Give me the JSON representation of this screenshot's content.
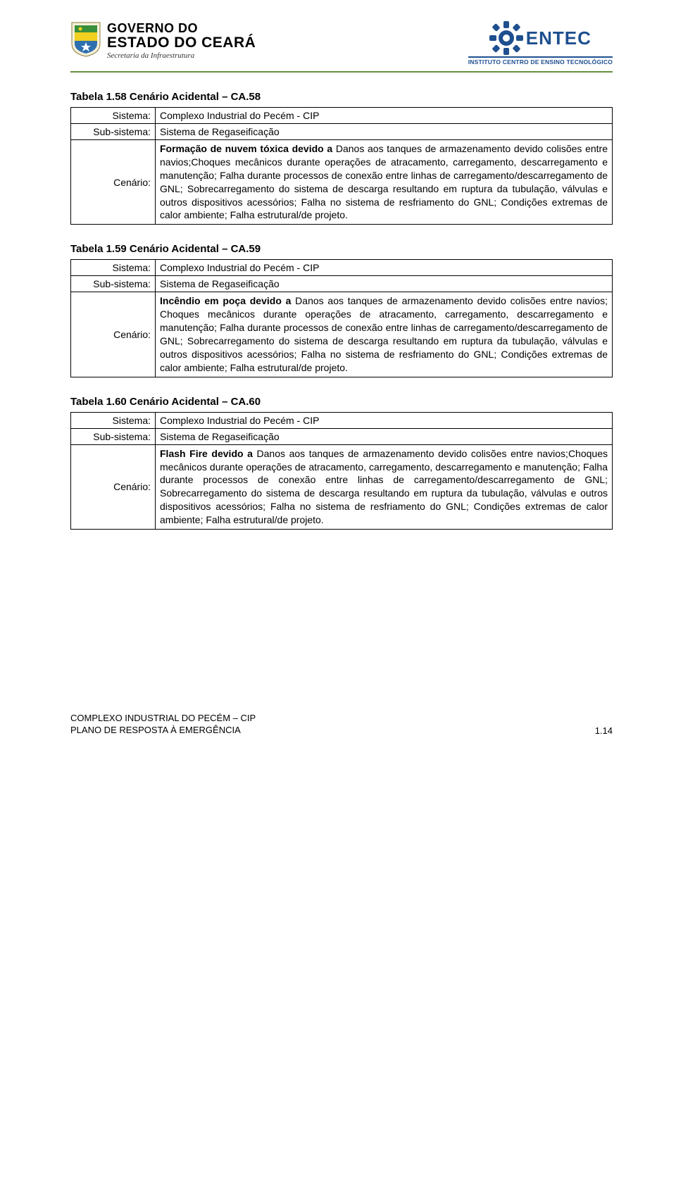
{
  "header": {
    "govt_line1": "GOVERNO DO",
    "govt_line2": "ESTADO DO CEARÁ",
    "govt_line3": "Secretaria da Infraestrutura",
    "entec_name": "ENTEC",
    "entec_sub": "INSTITUTO CENTRO DE ENSINO TECNOLÓGICO",
    "shield_colors": {
      "top": "#3a8f3a",
      "mid": "#f0d020",
      "bot": "#2e6fb0",
      "star": "#ffffff"
    },
    "gear_color": "#1e4f8f",
    "accent_line_color": "#648f3e"
  },
  "tables": [
    {
      "title": "Tabela 1.58 Cenário Acidental – CA.58",
      "rows": {
        "sistema_label": "Sistema:",
        "sistema_value": "Complexo Industrial do Pecém - CIP",
        "subsistema_label": "Sub-sistema:",
        "subsistema_value": "Sistema de Regaseificação",
        "cenario_label": "Cenário:",
        "cenario_bold": "Formação de nuvem tóxica devido a",
        "cenario_rest": " Danos aos tanques de armazenamento devido colisões entre navios;Choques mecânicos durante operações de atracamento, carregamento, descarregamento e manutenção; Falha durante processos de conexão entre linhas de carregamento/descarregamento de GNL; Sobrecarregamento do sistema de descarga resultando em ruptura da tubulação, válvulas e outros dispositivos acessórios; Falha no sistema de resfriamento do GNL; Condições extremas de calor ambiente; Falha estrutural/de projeto."
      }
    },
    {
      "title": "Tabela 1.59 Cenário Acidental – CA.59",
      "rows": {
        "sistema_label": "Sistema:",
        "sistema_value": "Complexo Industrial do Pecém - CIP",
        "subsistema_label": "Sub-sistema:",
        "subsistema_value": "Sistema de Regaseificação",
        "cenario_label": "Cenário:",
        "cenario_bold": "Incêndio em poça devido a",
        "cenario_rest": " Danos aos tanques de armazenamento devido colisões entre navios; Choques mecânicos durante operações de atracamento, carregamento, descarregamento e manutenção; Falha durante processos de conexão entre linhas de carregamento/descarregamento de GNL; Sobrecarregamento do sistema de descarga resultando em ruptura da tubulação, válvulas e outros dispositivos acessórios; Falha no sistema de resfriamento do GNL; Condições extremas de calor ambiente; Falha estrutural/de projeto."
      }
    },
    {
      "title": "Tabela 1.60 Cenário Acidental – CA.60",
      "rows": {
        "sistema_label": "Sistema:",
        "sistema_value": "Complexo Industrial do Pecém - CIP",
        "subsistema_label": "Sub-sistema:",
        "subsistema_value": "Sistema de Regaseificação",
        "cenario_label": "Cenário:",
        "cenario_bold": "Flash Fire devido a",
        "cenario_rest": " Danos aos tanques de armazenamento devido colisões entre navios;Choques mecânicos durante operações de atracamento, carregamento, descarregamento e manutenção; Falha durante processos de conexão entre linhas de carregamento/descarregamento de GNL; Sobrecarregamento do sistema de descarga resultando em ruptura da tubulação, válvulas e outros dispositivos acessórios; Falha no sistema de resfriamento do GNL; Condições extremas de calor ambiente; Falha estrutural/de projeto."
      }
    }
  ],
  "footer": {
    "line1": "COMPLEXO INDUSTRIAL DO PECÉM – CIP",
    "line2": "PLANO DE RESPOSTA À EMERGÊNCIA",
    "page": "1.14"
  }
}
